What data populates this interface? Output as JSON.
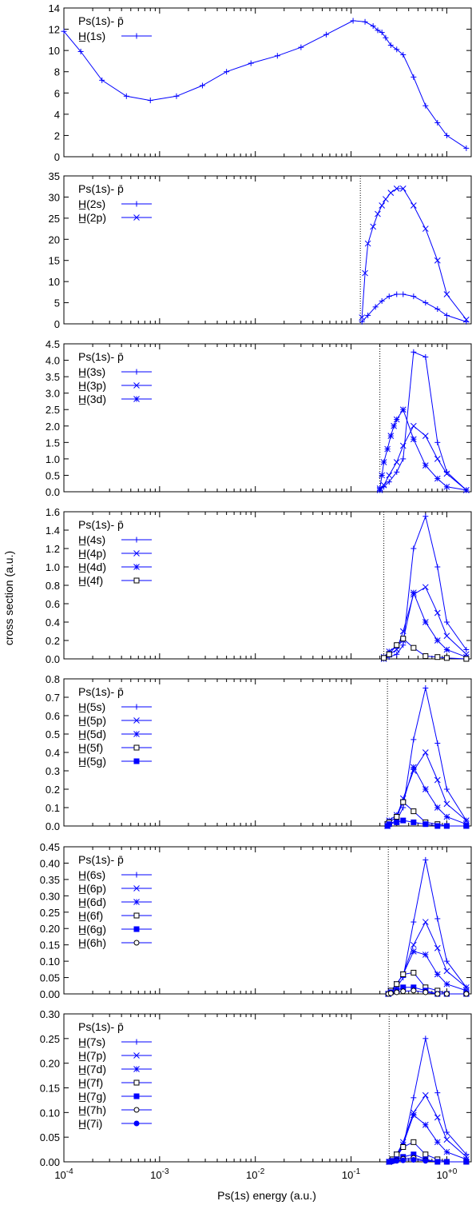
{
  "figure": {
    "ylabel": "cross section (a.u.)",
    "xlabel": "Ps(1s) energy (a.u.)"
  },
  "chart_data": [
    {
      "type": "line",
      "xscale": "log",
      "xlim": [
        0.0001,
        1.8
      ],
      "ylim": [
        0,
        14
      ],
      "yticks": [
        0,
        2,
        4,
        6,
        8,
        10,
        12,
        14
      ],
      "ytick_labels": [
        "0",
        "2",
        "4",
        "6",
        "8",
        "10",
        "12",
        "14"
      ],
      "threshold": null,
      "legend_header": "Ps(1s)- p̄",
      "legend_position": "top-left",
      "series": [
        {
          "name": "H̲(1s)",
          "marker": "plus",
          "x": [
            0.0001,
            0.00015,
            0.00025,
            0.00045,
            0.0008,
            0.0015,
            0.0028,
            0.005,
            0.009,
            0.017,
            0.03,
            0.055,
            0.105,
            0.14,
            0.17,
            0.19,
            0.21,
            0.23,
            0.26,
            0.3,
            0.35,
            0.45,
            0.6,
            0.8,
            1.0,
            1.6
          ],
          "y": [
            11.8,
            9.9,
            7.2,
            5.7,
            5.3,
            5.7,
            6.7,
            8.0,
            8.8,
            9.5,
            10.3,
            11.5,
            12.8,
            12.7,
            12.3,
            11.9,
            11.7,
            11.2,
            10.5,
            10.1,
            9.6,
            7.5,
            4.8,
            3.2,
            2.0,
            0.8
          ]
        }
      ]
    },
    {
      "type": "line",
      "xscale": "log",
      "xlim": [
        0.0001,
        1.8
      ],
      "ylim": [
        0,
        35
      ],
      "yticks": [
        0,
        5,
        10,
        15,
        20,
        25,
        30,
        35
      ],
      "ytick_labels": [
        "0",
        "5",
        "10",
        "15",
        "20",
        "25",
        "30",
        "35"
      ],
      "threshold": 0.125,
      "legend_header": "Ps(1s)- p̄",
      "legend_position": "top-left",
      "series": [
        {
          "name": "H̲(2s)",
          "marker": "plus",
          "x": [
            0.13,
            0.15,
            0.18,
            0.21,
            0.25,
            0.3,
            0.35,
            0.45,
            0.6,
            0.8,
            1.0,
            1.6
          ],
          "y": [
            0.5,
            2.0,
            4.0,
            5.4,
            6.5,
            7.0,
            7.0,
            6.5,
            5.0,
            3.5,
            2.0,
            0.5
          ]
        },
        {
          "name": "H̲(2p)",
          "marker": "cross",
          "x": [
            0.13,
            0.14,
            0.15,
            0.17,
            0.19,
            0.21,
            0.23,
            0.26,
            0.3,
            0.35,
            0.45,
            0.6,
            0.8,
            1.0,
            1.6
          ],
          "y": [
            1.5,
            12.0,
            19.0,
            23.0,
            26.0,
            28.0,
            29.5,
            31.0,
            32.0,
            32.0,
            28.0,
            22.5,
            15.0,
            7.0,
            1.0
          ]
        }
      ]
    },
    {
      "type": "line",
      "xscale": "log",
      "xlim": [
        0.0001,
        1.8
      ],
      "ylim": [
        0,
        4.5
      ],
      "yticks": [
        0,
        0.5,
        1.0,
        1.5,
        2.0,
        2.5,
        3.0,
        3.5,
        4.0,
        4.5
      ],
      "ytick_labels": [
        "0.0",
        "0.5",
        "1.0",
        "1.5",
        "2.0",
        "2.5",
        "3.0",
        "3.5",
        "4.0",
        "4.5"
      ],
      "threshold": 0.2,
      "legend_header": "Ps(1s)- p̄",
      "legend_position": "top-left",
      "series": [
        {
          "name": "H̲(3s)",
          "marker": "plus",
          "x": [
            0.2,
            0.22,
            0.25,
            0.3,
            0.35,
            0.45,
            0.6,
            0.8,
            1.0,
            1.6
          ],
          "y": [
            0.05,
            0.15,
            0.3,
            0.6,
            1.0,
            4.25,
            4.1,
            1.5,
            0.6,
            0.05
          ]
        },
        {
          "name": "H̲(3p)",
          "marker": "cross",
          "x": [
            0.2,
            0.22,
            0.25,
            0.3,
            0.35,
            0.45,
            0.6,
            0.8,
            1.0,
            1.6
          ],
          "y": [
            0.05,
            0.2,
            0.5,
            0.9,
            1.4,
            2.0,
            1.7,
            1.0,
            0.55,
            0.05
          ]
        },
        {
          "name": "H̲(3d)",
          "marker": "star",
          "x": [
            0.2,
            0.21,
            0.22,
            0.24,
            0.26,
            0.28,
            0.3,
            0.35,
            0.45,
            0.6,
            0.8,
            1.0,
            1.6
          ],
          "y": [
            0.1,
            0.5,
            0.9,
            1.3,
            1.7,
            2.0,
            2.2,
            2.5,
            1.6,
            0.8,
            0.4,
            0.15,
            0.05
          ]
        }
      ]
    },
    {
      "type": "line",
      "xscale": "log",
      "xlim": [
        0.0001,
        1.8
      ],
      "ylim": [
        0,
        1.6
      ],
      "yticks": [
        0,
        0.2,
        0.4,
        0.6,
        0.8,
        1.0,
        1.2,
        1.4,
        1.6
      ],
      "ytick_labels": [
        "0.0",
        "0.2",
        "0.4",
        "0.6",
        "0.8",
        "1.0",
        "1.2",
        "1.4",
        "1.6"
      ],
      "threshold": 0.22,
      "legend_header": "Ps(1s)- p̄",
      "legend_position": "top-left",
      "series": [
        {
          "name": "H̲(4s)",
          "marker": "plus",
          "x": [
            0.22,
            0.25,
            0.3,
            0.35,
            0.45,
            0.6,
            0.8,
            1.0,
            1.6
          ],
          "y": [
            0.0,
            0.02,
            0.05,
            0.15,
            1.2,
            1.55,
            1.0,
            0.4,
            0.1
          ]
        },
        {
          "name": "H̲(4p)",
          "marker": "cross",
          "x": [
            0.22,
            0.25,
            0.3,
            0.35,
            0.45,
            0.6,
            0.8,
            1.0,
            1.6
          ],
          "y": [
            0.0,
            0.05,
            0.1,
            0.3,
            0.7,
            0.78,
            0.5,
            0.25,
            0.05
          ]
        },
        {
          "name": "H̲(4d)",
          "marker": "star",
          "x": [
            0.22,
            0.25,
            0.3,
            0.35,
            0.45,
            0.6,
            0.8,
            1.0,
            1.6
          ],
          "y": [
            0.02,
            0.08,
            0.14,
            0.2,
            0.72,
            0.4,
            0.2,
            0.1,
            0.02
          ]
        },
        {
          "name": "H̲(4f)",
          "marker": "open-square",
          "x": [
            0.22,
            0.25,
            0.3,
            0.35,
            0.45,
            0.6,
            0.8,
            1.0,
            1.6
          ],
          "y": [
            0.01,
            0.05,
            0.15,
            0.22,
            0.12,
            0.03,
            0.02,
            0.01,
            0.0
          ]
        }
      ]
    },
    {
      "type": "line",
      "xscale": "log",
      "xlim": [
        0.0001,
        1.8
      ],
      "ylim": [
        0,
        0.8
      ],
      "yticks": [
        0,
        0.1,
        0.2,
        0.3,
        0.4,
        0.5,
        0.6,
        0.7,
        0.8
      ],
      "ytick_labels": [
        "0.0",
        "0.1",
        "0.2",
        "0.3",
        "0.4",
        "0.5",
        "0.6",
        "0.7",
        "0.8"
      ],
      "threshold": 0.24,
      "legend_header": "Ps(1s)- p̄",
      "legend_position": "top-left",
      "series": [
        {
          "name": "H̲(5s)",
          "marker": "plus",
          "x": [
            0.24,
            0.25,
            0.3,
            0.35,
            0.45,
            0.6,
            0.8,
            1.0,
            1.6
          ],
          "y": [
            0.0,
            0.01,
            0.03,
            0.1,
            0.47,
            0.75,
            0.45,
            0.2,
            0.03
          ]
        },
        {
          "name": "H̲(5p)",
          "marker": "cross",
          "x": [
            0.24,
            0.25,
            0.3,
            0.35,
            0.45,
            0.6,
            0.8,
            1.0,
            1.6
          ],
          "y": [
            0.0,
            0.02,
            0.05,
            0.15,
            0.3,
            0.4,
            0.25,
            0.12,
            0.03
          ]
        },
        {
          "name": "H̲(5d)",
          "marker": "star",
          "x": [
            0.24,
            0.25,
            0.3,
            0.35,
            0.45,
            0.6,
            0.8,
            1.0,
            1.6
          ],
          "y": [
            0.01,
            0.03,
            0.06,
            0.13,
            0.32,
            0.2,
            0.1,
            0.05,
            0.01
          ]
        },
        {
          "name": "H̲(5f)",
          "marker": "open-square",
          "x": [
            0.24,
            0.25,
            0.3,
            0.35,
            0.45,
            0.6,
            0.8,
            1.0,
            1.6
          ],
          "y": [
            0.01,
            0.02,
            0.05,
            0.13,
            0.08,
            0.02,
            0.01,
            0.0,
            0.0
          ]
        },
        {
          "name": "H̲(5g)",
          "marker": "filled-square",
          "x": [
            0.24,
            0.25,
            0.3,
            0.35,
            0.45,
            0.6,
            0.8,
            1.0,
            1.6
          ],
          "y": [
            0.0,
            0.01,
            0.02,
            0.03,
            0.02,
            0.01,
            0.0,
            0.0,
            0.0
          ]
        }
      ]
    },
    {
      "type": "line",
      "xscale": "log",
      "xlim": [
        0.0001,
        1.8
      ],
      "ylim": [
        0,
        0.45
      ],
      "yticks": [
        0,
        0.05,
        0.1,
        0.15,
        0.2,
        0.25,
        0.3,
        0.35,
        0.4,
        0.45
      ],
      "ytick_labels": [
        "0.00",
        "0.05",
        "0.10",
        "0.15",
        "0.20",
        "0.25",
        "0.30",
        "0.35",
        "0.40",
        "0.45"
      ],
      "threshold": 0.245,
      "legend_header": "Ps(1s)- p̄",
      "legend_position": "top-left",
      "series": [
        {
          "name": "H̲(6s)",
          "marker": "plus",
          "x": [
            0.245,
            0.26,
            0.3,
            0.35,
            0.45,
            0.6,
            0.8,
            1.0,
            1.6
          ],
          "y": [
            0.0,
            0.01,
            0.02,
            0.05,
            0.22,
            0.41,
            0.23,
            0.1,
            0.02
          ]
        },
        {
          "name": "H̲(6p)",
          "marker": "cross",
          "x": [
            0.245,
            0.26,
            0.3,
            0.35,
            0.45,
            0.6,
            0.8,
            1.0,
            1.6
          ],
          "y": [
            0.0,
            0.01,
            0.03,
            0.06,
            0.15,
            0.22,
            0.14,
            0.07,
            0.02
          ]
        },
        {
          "name": "H̲(6d)",
          "marker": "star",
          "x": [
            0.245,
            0.26,
            0.3,
            0.35,
            0.45,
            0.6,
            0.8,
            1.0,
            1.6
          ],
          "y": [
            0.0,
            0.01,
            0.03,
            0.06,
            0.13,
            0.12,
            0.06,
            0.03,
            0.01
          ]
        },
        {
          "name": "H̲(6f)",
          "marker": "open-square",
          "x": [
            0.245,
            0.26,
            0.3,
            0.35,
            0.45,
            0.6,
            0.8,
            1.0,
            1.6
          ],
          "y": [
            0.0,
            0.01,
            0.03,
            0.06,
            0.065,
            0.02,
            0.01,
            0.0,
            0.0
          ]
        },
        {
          "name": "H̲(6g)",
          "marker": "filled-square",
          "x": [
            0.245,
            0.26,
            0.3,
            0.35,
            0.45,
            0.6,
            0.8,
            1.0,
            1.6
          ],
          "y": [
            0.0,
            0.005,
            0.01,
            0.02,
            0.02,
            0.01,
            0.0,
            0.0,
            0.0
          ]
        },
        {
          "name": "H̲(6h)",
          "marker": "open-circle",
          "x": [
            0.245,
            0.26,
            0.3,
            0.35,
            0.45,
            0.6,
            0.8,
            1.0,
            1.6
          ],
          "y": [
            0.0,
            0.002,
            0.005,
            0.008,
            0.01,
            0.005,
            0.0,
            0.0,
            0.0
          ]
        }
      ]
    },
    {
      "type": "line",
      "xscale": "log",
      "xlim": [
        0.0001,
        1.8
      ],
      "ylim": [
        0,
        0.3
      ],
      "yticks": [
        0,
        0.05,
        0.1,
        0.15,
        0.2,
        0.25,
        0.3
      ],
      "ytick_labels": [
        "0.00",
        "0.05",
        "0.10",
        "0.15",
        "0.20",
        "0.25",
        "0.30"
      ],
      "threshold": 0.25,
      "legend_header": "Ps(1s)- p̄",
      "legend_position": "top-left",
      "series": [
        {
          "name": "H̲(7s)",
          "marker": "plus",
          "x": [
            0.25,
            0.27,
            0.3,
            0.35,
            0.45,
            0.6,
            0.8,
            1.0,
            1.6
          ],
          "y": [
            0.0,
            0.005,
            0.01,
            0.03,
            0.13,
            0.25,
            0.14,
            0.06,
            0.015
          ]
        },
        {
          "name": "H̲(7p)",
          "marker": "cross",
          "x": [
            0.25,
            0.27,
            0.3,
            0.35,
            0.45,
            0.6,
            0.8,
            1.0,
            1.6
          ],
          "y": [
            0.0,
            0.005,
            0.015,
            0.04,
            0.1,
            0.135,
            0.09,
            0.045,
            0.01
          ]
        },
        {
          "name": "H̲(7d)",
          "marker": "star",
          "x": [
            0.25,
            0.27,
            0.3,
            0.35,
            0.45,
            0.6,
            0.8,
            1.0,
            1.6
          ],
          "y": [
            0.0,
            0.005,
            0.015,
            0.035,
            0.095,
            0.075,
            0.04,
            0.02,
            0.005
          ]
        },
        {
          "name": "H̲(7f)",
          "marker": "open-square",
          "x": [
            0.25,
            0.27,
            0.3,
            0.35,
            0.45,
            0.6,
            0.8,
            1.0,
            1.6
          ],
          "y": [
            0.0,
            0.005,
            0.015,
            0.03,
            0.04,
            0.015,
            0.005,
            0.0,
            0.0
          ]
        },
        {
          "name": "H̲(7g)",
          "marker": "filled-square",
          "x": [
            0.25,
            0.27,
            0.3,
            0.35,
            0.45,
            0.6,
            0.8,
            1.0,
            1.6
          ],
          "y": [
            0.0,
            0.002,
            0.005,
            0.01,
            0.015,
            0.005,
            0.0,
            0.0,
            0.0
          ]
        },
        {
          "name": "H̲(7h)",
          "marker": "open-circle",
          "x": [
            0.25,
            0.27,
            0.3,
            0.35,
            0.45,
            0.6,
            0.8,
            1.0,
            1.6
          ],
          "y": [
            0.0,
            0.001,
            0.003,
            0.006,
            0.008,
            0.003,
            0.0,
            0.0,
            0.0
          ]
        },
        {
          "name": "H̲(7i)",
          "marker": "filled-circle",
          "x": [
            0.25,
            0.27,
            0.3,
            0.35,
            0.45,
            0.6,
            0.8,
            1.0,
            1.6
          ],
          "y": [
            0.0,
            0.001,
            0.002,
            0.003,
            0.004,
            0.002,
            0.0,
            0.0,
            0.0
          ]
        }
      ]
    }
  ],
  "xaxis": {
    "ticks": [
      0.0001,
      0.001,
      0.01,
      0.1,
      1
    ],
    "tick_mantissa": "10",
    "tick_exponents": [
      "-4",
      "-3",
      "-2",
      "-1",
      "+0"
    ]
  },
  "colors": {
    "series": "#0000ff",
    "axes": "#000000",
    "threshold": "#000000"
  }
}
